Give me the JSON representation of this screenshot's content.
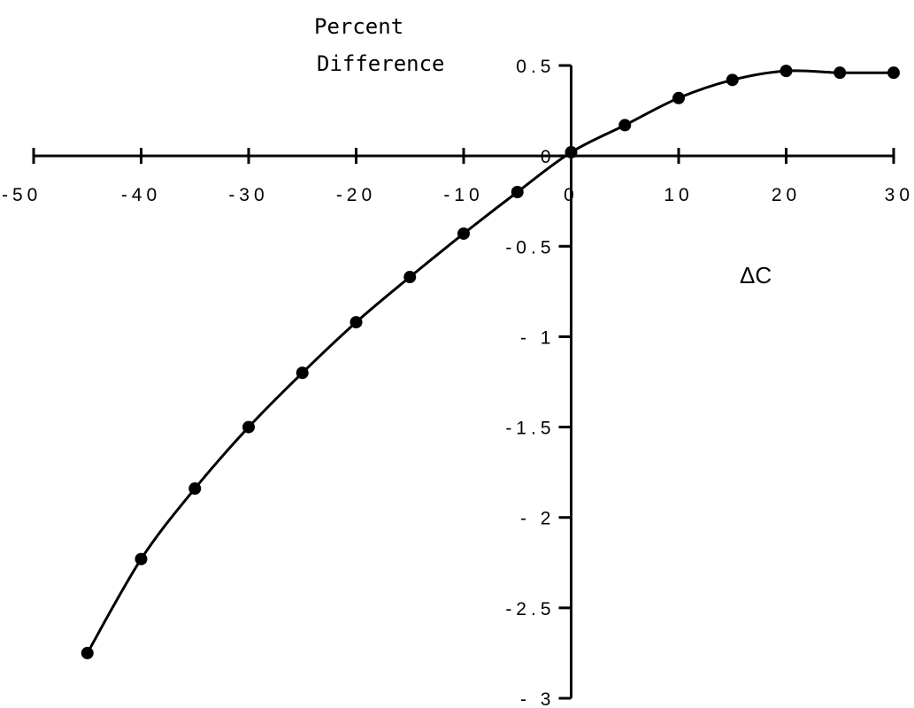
{
  "chart_data": {
    "type": "line",
    "ylabel_line1": "Percent",
    "ylabel_line2": "Difference",
    "xlabel": "ΔC",
    "xlim": [
      -50,
      30
    ],
    "ylim": [
      -3,
      0.5
    ],
    "x_ticks": [
      -50,
      -40,
      -30,
      -20,
      -10,
      0,
      10,
      20,
      30
    ],
    "x_tick_labels": [
      "-50",
      "-40",
      "-30",
      "-20",
      "-10",
      "0",
      "10",
      "20",
      "30"
    ],
    "y_ticks": [
      0.5,
      0,
      -0.5,
      -1,
      -1.5,
      -2,
      -2.5,
      -3
    ],
    "y_tick_labels": [
      "0.5",
      "0",
      "-0.5",
      "- 1",
      "-1.5",
      "- 2",
      "-2.5",
      "- 3"
    ],
    "grid": false,
    "series": [
      {
        "x": [
          -45,
          -40,
          -35,
          -30,
          -25,
          -20,
          -15,
          -10,
          -5,
          0,
          5,
          10,
          15,
          20,
          25,
          30
        ],
        "y": [
          -2.75,
          -2.23,
          -1.84,
          -1.5,
          -1.2,
          -0.92,
          -0.67,
          -0.43,
          -0.2,
          0.02,
          0.17,
          0.32,
          0.42,
          0.47,
          0.46,
          0.46
        ]
      }
    ],
    "line_color": "#000000",
    "marker": "filled-circle"
  }
}
